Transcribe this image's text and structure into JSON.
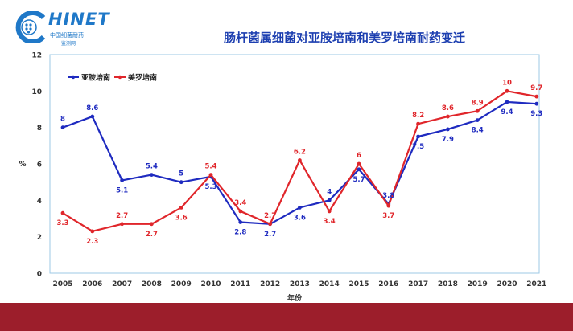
{
  "header": {
    "logo_text": "HINET",
    "logo_sub1": "中国细菌耐药",
    "logo_sub2": "监测网"
  },
  "chart_data": {
    "type": "line",
    "title": "肠杆菌属细菌对亚胺培南和美罗培南耐药变迁",
    "xlabel": "年份",
    "ylabel": "%",
    "ylim": [
      0,
      12
    ],
    "yticks": [
      0,
      2,
      4,
      6,
      8,
      10,
      12
    ],
    "grid": false,
    "legend_position": "top-left",
    "categories": [
      "2005",
      "2006",
      "2007",
      "2008",
      "2009",
      "2010",
      "2011",
      "2012",
      "2013",
      "2014",
      "2015",
      "2016",
      "2017",
      "2018",
      "2019",
      "2020",
      "2021"
    ],
    "series": [
      {
        "name": "亚胺培南",
        "color": "#1f2bc0",
        "values": [
          8,
          8.6,
          5.1,
          5.4,
          5,
          5.3,
          2.8,
          2.7,
          3.6,
          4,
          5.7,
          3.8,
          7.5,
          7.9,
          8.4,
          9.4,
          9.3
        ]
      },
      {
        "name": "美罗培南",
        "color": "#e0262b",
        "values": [
          3.3,
          2.3,
          2.7,
          2.7,
          3.6,
          5.4,
          3.4,
          2.7,
          6.2,
          3.4,
          6,
          3.7,
          8.2,
          8.6,
          8.9,
          10,
          9.7
        ]
      }
    ],
    "labels": [
      {
        "series": 0,
        "index": 0,
        "text": "8",
        "pos": "above"
      },
      {
        "series": 0,
        "index": 1,
        "text": "8.6",
        "pos": "above"
      },
      {
        "series": 0,
        "index": 2,
        "text": "5.1",
        "pos": "below"
      },
      {
        "series": 0,
        "index": 3,
        "text": "5.4",
        "pos": "above"
      },
      {
        "series": 0,
        "index": 4,
        "text": "5",
        "pos": "above"
      },
      {
        "series": 0,
        "index": 5,
        "text": "5.3",
        "pos": "below"
      },
      {
        "series": 0,
        "index": 6,
        "text": "2.8",
        "pos": "below"
      },
      {
        "series": 0,
        "index": 7,
        "text": "2.7",
        "pos": "below"
      },
      {
        "series": 0,
        "index": 8,
        "text": "3.6",
        "pos": "below"
      },
      {
        "series": 0,
        "index": 9,
        "text": "4",
        "pos": "above"
      },
      {
        "series": 0,
        "index": 10,
        "text": "5.7",
        "pos": "below"
      },
      {
        "series": 0,
        "index": 11,
        "text": "3.8",
        "pos": "above"
      },
      {
        "series": 0,
        "index": 12,
        "text": "7.5",
        "pos": "below"
      },
      {
        "series": 0,
        "index": 13,
        "text": "7.9",
        "pos": "below"
      },
      {
        "series": 0,
        "index": 14,
        "text": "8.4",
        "pos": "below"
      },
      {
        "series": 0,
        "index": 15,
        "text": "9.4",
        "pos": "below"
      },
      {
        "series": 0,
        "index": 16,
        "text": "9.3",
        "pos": "below"
      },
      {
        "series": 1,
        "index": 0,
        "text": "3.3",
        "pos": "below"
      },
      {
        "series": 1,
        "index": 1,
        "text": "2.3",
        "pos": "below"
      },
      {
        "series": 1,
        "index": 2,
        "text": "2.7",
        "pos": "above"
      },
      {
        "series": 1,
        "index": 3,
        "text": "2.7",
        "pos": "below"
      },
      {
        "series": 1,
        "index": 4,
        "text": "3.6",
        "pos": "below"
      },
      {
        "series": 1,
        "index": 5,
        "text": "5.4",
        "pos": "above"
      },
      {
        "series": 1,
        "index": 6,
        "text": "3.4",
        "pos": "above"
      },
      {
        "series": 1,
        "index": 7,
        "text": "2.7",
        "pos": "above"
      },
      {
        "series": 1,
        "index": 8,
        "text": "6.2",
        "pos": "above"
      },
      {
        "series": 1,
        "index": 9,
        "text": "3.4",
        "pos": "below"
      },
      {
        "series": 1,
        "index": 10,
        "text": "6",
        "pos": "above"
      },
      {
        "series": 1,
        "index": 11,
        "text": "3.7",
        "pos": "below"
      },
      {
        "series": 1,
        "index": 12,
        "text": "8.2",
        "pos": "above"
      },
      {
        "series": 1,
        "index": 13,
        "text": "8.6",
        "pos": "above"
      },
      {
        "series": 1,
        "index": 14,
        "text": "8.9",
        "pos": "above"
      },
      {
        "series": 1,
        "index": 15,
        "text": "10",
        "pos": "above"
      },
      {
        "series": 1,
        "index": 16,
        "text": "9.7",
        "pos": "above"
      }
    ]
  }
}
